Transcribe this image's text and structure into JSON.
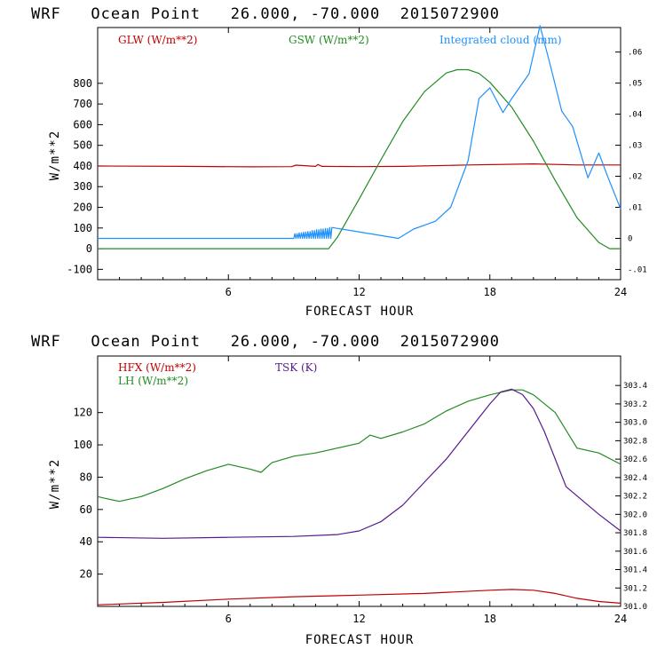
{
  "chart_data": [
    {
      "type": "line",
      "title": "WRF   Ocean Point   26.000, -70.000  2015072900",
      "xlabel": "FORECAST HOUR",
      "ylabel": "W/m**2",
      "xlim": [
        0,
        24
      ],
      "ylim": [
        -150,
        1070
      ],
      "y2lim": [
        -0.0133,
        0.0679
      ],
      "x_ticks": [
        6,
        12,
        18,
        24
      ],
      "y_ticks": [
        -100,
        0,
        100,
        200,
        300,
        400,
        500,
        600,
        700,
        800
      ],
      "y_tick_labels": [
        "-100",
        "0",
        "100",
        "200",
        "300",
        "400",
        "500",
        "600",
        "700",
        "800"
      ],
      "y2_ticks": [
        -0.01,
        0,
        0.01,
        0.02,
        0.03,
        0.04,
        0.05,
        0.06
      ],
      "y2_tick_labels": [
        "-.01",
        "0",
        ".01",
        ".02",
        ".03",
        ".04",
        ".05",
        ".06"
      ],
      "series": [
        {
          "name": "GLW (W/m**2)",
          "axis": "left",
          "color": "#c00000",
          "x": [
            0,
            4,
            7,
            8.9,
            9.1,
            10,
            10.1,
            10.3,
            12,
            14,
            17,
            20,
            22,
            24
          ],
          "y": [
            400,
            398,
            396,
            397,
            404,
            398,
            407,
            398,
            397,
            398,
            405,
            410,
            405,
            405
          ]
        },
        {
          "name": "GSW (W/m**2)",
          "axis": "left",
          "color": "#228b22",
          "x": [
            0,
            10.6,
            11,
            12,
            13,
            14,
            15,
            16,
            16.5,
            17,
            17.5,
            18,
            19,
            20,
            21,
            22,
            23,
            23.5,
            24
          ],
          "y": [
            0,
            0,
            55,
            240,
            430,
            615,
            760,
            850,
            866,
            866,
            848,
            805,
            685,
            520,
            330,
            150,
            30,
            0,
            0
          ]
        },
        {
          "name": "Integrated cloud (mm)",
          "axis": "right",
          "color": "#1e90ff",
          "x": [
            0,
            8.8,
            9,
            9.2,
            9.4,
            9.6,
            9.8,
            10,
            10.2,
            10.4,
            10.6,
            10.8,
            13.8,
            14.5,
            15.5,
            16.2,
            17,
            17.5,
            18,
            18.6,
            19,
            19.8,
            20.3,
            20.8,
            21.3,
            21.8,
            22.5,
            23,
            23.4,
            24
          ],
          "y": [
            0,
            0,
            0.0015,
            0.0018,
            0.002,
            0.0022,
            0.0025,
            0.0028,
            0.003,
            0.0032,
            0.0035,
            0,
            0,
            0.003,
            0.0055,
            0.01,
            0.025,
            0.045,
            0.0485,
            0.0405,
            0.045,
            0.053,
            0.0685,
            0.055,
            0.041,
            0.036,
            0.0195,
            0.0275,
            0.02,
            0.0095
          ]
        }
      ],
      "noise_segment": {
        "x_start": 8.8,
        "x_end": 10.8,
        "step": 0.05,
        "series": "Integrated cloud (mm)"
      }
    },
    {
      "type": "line",
      "title": "WRF   Ocean Point   26.000, -70.000  2015072900",
      "xlabel": "FORECAST HOUR",
      "ylabel": "W/m**2",
      "xlim": [
        0,
        24
      ],
      "ylim": [
        0,
        155
      ],
      "y2lim": [
        301.0,
        303.72
      ],
      "x_ticks": [
        6,
        12,
        18,
        24
      ],
      "y_ticks": [
        20,
        40,
        60,
        80,
        100,
        120
      ],
      "y_tick_labels": [
        "20",
        "40",
        "60",
        "80",
        "100",
        "120"
      ],
      "y2_ticks": [
        301.0,
        301.2,
        301.4,
        301.6,
        301.8,
        302.0,
        302.2,
        302.4,
        302.6,
        302.8,
        303.0,
        303.2,
        303.4
      ],
      "y2_tick_labels": [
        "301.0",
        "301.2",
        "301.4",
        "301.6",
        "301.8",
        "302.0",
        "302.2",
        "302.4",
        "302.6",
        "302.8",
        "303.0",
        "303.2",
        "303.4"
      ],
      "series": [
        {
          "name": "HFX (W/m**2)",
          "axis": "left",
          "color": "#c00000",
          "x": [
            0,
            3,
            6,
            9,
            12,
            15,
            18,
            19,
            20,
            21,
            22,
            23,
            24
          ],
          "y": [
            1,
            2.5,
            4.5,
            6,
            7,
            8,
            10,
            10.5,
            10,
            8,
            5,
            3,
            2
          ]
        },
        {
          "name": "LH (W/m**2)",
          "axis": "left",
          "color": "#228b22",
          "x": [
            0,
            0.3,
            1,
            2,
            3,
            4,
            5,
            6,
            7,
            7.5,
            8,
            9,
            10,
            11,
            12,
            12.5,
            13,
            14,
            15,
            16,
            17,
            18,
            19,
            19.5,
            20,
            21,
            22,
            23,
            24
          ],
          "y": [
            68,
            67,
            65,
            68,
            73,
            79,
            84,
            88,
            85,
            83,
            89,
            93,
            95,
            98,
            101,
            106,
            104,
            108,
            113,
            121,
            127,
            131,
            134,
            134,
            131,
            120,
            98,
            95,
            88
          ]
        },
        {
          "name": "TSK (K)",
          "axis": "right",
          "color": "#551a8b",
          "x": [
            0,
            3,
            6,
            9,
            11,
            12,
            13,
            14,
            15,
            16,
            17,
            18,
            18.5,
            19,
            19.5,
            20,
            20.5,
            21,
            21.5,
            22,
            23,
            24
          ],
          "y": [
            301.75,
            301.74,
            301.75,
            301.76,
            301.78,
            301.82,
            301.92,
            302.1,
            302.35,
            302.6,
            302.9,
            303.2,
            303.33,
            303.36,
            303.3,
            303.15,
            302.9,
            302.6,
            302.3,
            302.2,
            302.0,
            301.82
          ]
        }
      ]
    }
  ]
}
